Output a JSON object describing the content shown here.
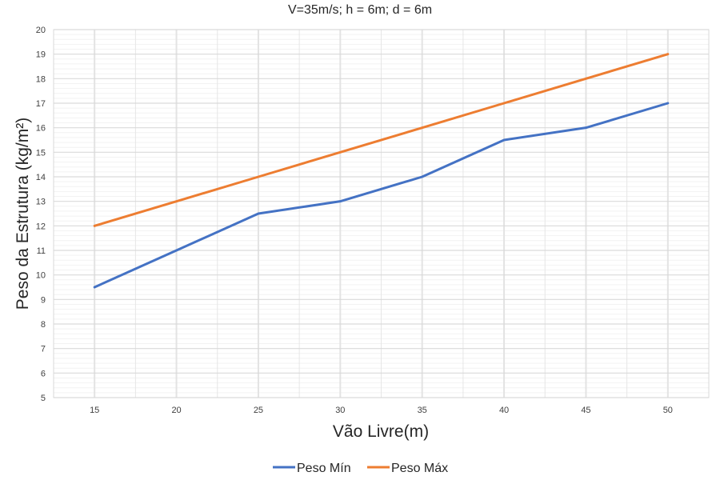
{
  "chart_data": {
    "type": "line",
    "title": "V=35m/s; h = 6m; d = 6m",
    "xlabel": "Vão Livre(m)",
    "ylabel": "Peso da Estrutura (kg/m²)",
    "x": [
      15,
      20,
      25,
      30,
      35,
      40,
      45,
      50
    ],
    "xlim": [
      12.5,
      52.5
    ],
    "ylim": [
      5,
      20
    ],
    "yticks": [
      5,
      6,
      7,
      8,
      9,
      10,
      11,
      12,
      13,
      14,
      15,
      16,
      17,
      18,
      19,
      20
    ],
    "grid": true,
    "legend_position": "bottom",
    "series": [
      {
        "name": "Peso Mín",
        "color": "#4472C4",
        "values": [
          9.5,
          11,
          12.5,
          13,
          14,
          15.5,
          16,
          17
        ]
      },
      {
        "name": "Peso Máx",
        "color": "#ED7D31",
        "values": [
          12,
          13,
          14,
          15,
          16,
          17,
          18,
          19
        ]
      }
    ]
  }
}
